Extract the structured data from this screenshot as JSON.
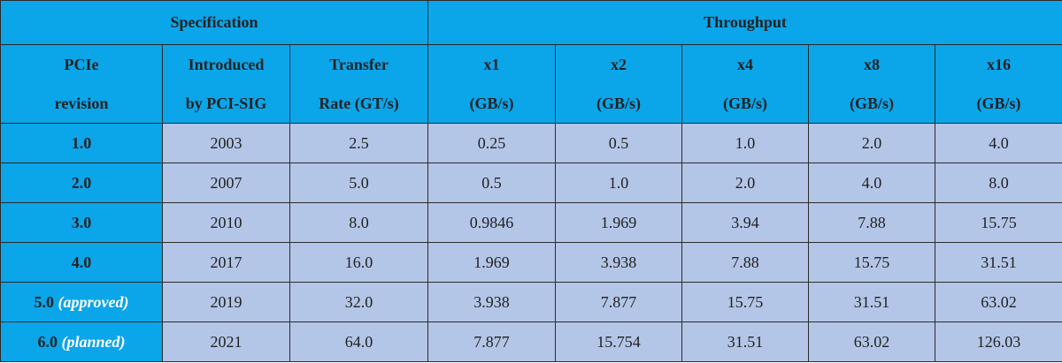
{
  "header": {
    "groups": [
      "Specification",
      "Throughput"
    ],
    "columns": [
      [
        "PCIe",
        "revision"
      ],
      [
        "Introduced",
        "by PCI-SIG"
      ],
      [
        "Transfer",
        "Rate (GT/s)"
      ],
      [
        "x1",
        "(GB/s)"
      ],
      [
        "x2",
        "(GB/s)"
      ],
      [
        "x4",
        "(GB/s)"
      ],
      [
        "x8",
        "(GB/s)"
      ],
      [
        "x16",
        "(GB/s)"
      ]
    ]
  },
  "rows": [
    {
      "revision": "1.0",
      "cells": [
        "2003",
        "2.5",
        "0.25",
        "0.5",
        "1.0",
        "2.0",
        "4.0"
      ]
    },
    {
      "revision": "2.0",
      "cells": [
        "2007",
        "5.0",
        "0.5",
        "1.0",
        "2.0",
        "4.0",
        "8.0"
      ]
    },
    {
      "revision": "3.0",
      "cells": [
        "2010",
        "8.0",
        "0.9846",
        "1.969",
        "3.94",
        "7.88",
        "15.75"
      ]
    },
    {
      "revision": "4.0",
      "cells": [
        "2017",
        "16.0",
        "1.969",
        "3.938",
        "7.88",
        "15.75",
        "31.51"
      ]
    },
    {
      "revision": "5.0",
      "note": "(approved)",
      "cells": [
        "2019",
        "32.0",
        "3.938",
        "7.877",
        "15.75",
        "31.51",
        "63.02"
      ]
    },
    {
      "revision": "6.0",
      "note": "(planned)",
      "cells": [
        "2021",
        "64.0",
        "7.877",
        "15.754",
        "31.51",
        "63.02",
        "126.03"
      ]
    }
  ]
}
